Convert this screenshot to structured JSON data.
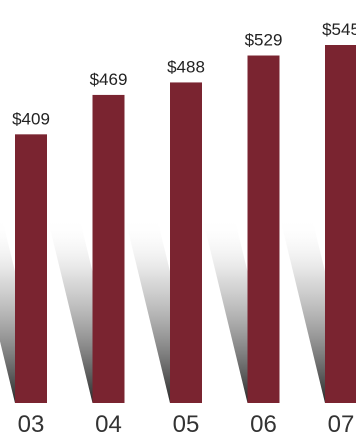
{
  "chart_data": {
    "type": "bar",
    "categories": [
      "03",
      "04",
      "05",
      "06",
      "07"
    ],
    "values": [
      409,
      469,
      488,
      529,
      545
    ],
    "value_labels": [
      "$409",
      "$469",
      "$488",
      "$529",
      "$545"
    ],
    "title": "",
    "xlabel": "",
    "ylabel": "",
    "ylim": [
      0,
      545
    ],
    "grid": false,
    "bar_color": "#7a2430",
    "shadow_color": "#333333"
  }
}
